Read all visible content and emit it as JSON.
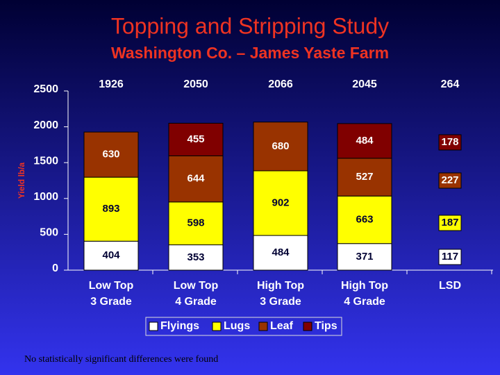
{
  "chart_data": {
    "type": "stacked-bar",
    "title": "Topping and Stripping Study",
    "subtitle": "Washington Co. – James Yaste Farm",
    "y_label": "Yield lb/a",
    "categories": [
      [
        "Low Top",
        "3 Grade"
      ],
      [
        "Low Top",
        "4 Grade"
      ],
      [
        "High Top",
        "3 Grade"
      ],
      [
        "High Top",
        "4 Grade"
      ]
    ],
    "totals": [
      1926,
      2050,
      2066,
      2045
    ],
    "series": [
      {
        "name": "Flyings",
        "color": "#ffffff",
        "values": [
          404,
          353,
          484,
          371
        ]
      },
      {
        "name": "Lugs",
        "color": "#ffff00",
        "values": [
          893,
          598,
          902,
          663
        ]
      },
      {
        "name": "Leaf",
        "color": "#993300",
        "values": [
          630,
          644,
          680,
          527
        ]
      },
      {
        "name": "Tips",
        "color": "#800000",
        "values": [
          null,
          455,
          null,
          484
        ]
      }
    ],
    "lsd": {
      "label": "LSD",
      "total": 264,
      "values": [
        117,
        187,
        227,
        178
      ]
    },
    "ylim": [
      0,
      2500
    ],
    "yticks": [
      0,
      500,
      1000,
      1500,
      2000,
      2500
    ],
    "note": "No statistically significant differences were found"
  }
}
